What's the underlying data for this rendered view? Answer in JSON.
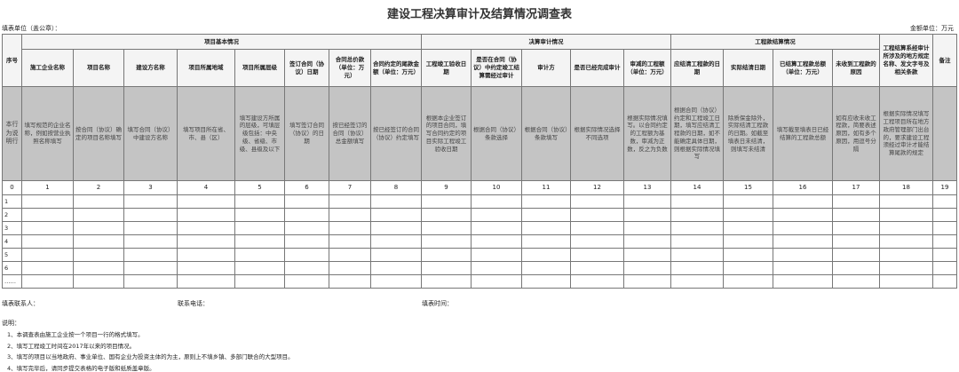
{
  "header": {
    "title": "建设工程决算审计及结算情况调查表",
    "unit_label": "填表单位（盖公章）：",
    "amount_unit": "金额单位：万元"
  },
  "table": {
    "header": {
      "seq": "序号",
      "groups": [
        "项目基本情况",
        "决算审计情况",
        "工程款结算情况"
      ],
      "columns": [
        "施工企业名称",
        "项目名称",
        "建设方名称",
        "项目所属地域",
        "项目所属层级",
        "签订合同（协议）日期",
        "合同总价款（单位：万元）",
        "合同约定的尾款金额（单位：万元）",
        "工程竣工验收日期",
        "是否在合同（协议）中约定竣工结算需经过审计",
        "审计方",
        "是否已经完成审计",
        "审减的工程额（单位：万元）",
        "应结清工程款的日期",
        "实际结清日期",
        "已结算工程款总额（单位：万元）",
        "未收到工程款的原因",
        "工程结算系经审计所涉及的地方规定名称、发文字号及相关条款",
        "备注"
      ]
    },
    "instructions": [
      "本行为说明行",
      "填写规范的企业名称，例如按营业执照名称填写",
      "按合同（协议）确定的项目名称填写",
      "填写合同（协议）中建设方名称",
      "填写项目所在省、市、县（区）",
      "填写建设方所属的层级，可填层级包括：中央级、省级、市级、县级及以下",
      "填写签订合同（协议）的日期",
      "按已经签订的合同（协议）总金额填写",
      "按已经签订的合同（协议）约定填写",
      "根据本企业签订的项目合同，填写合同约定的项目实际工程竣工验收日期",
      "根据合同（协议）条款选择",
      "根据合同（协议）条款填写",
      "根据实际情况选择不同选项",
      "根据实际情况填写。以合同约定的工程额为基数，审减为正数，反之为负数",
      "根据合同（协议）约定和工程竣工日期，填写应结清工程款的日期，如不能确定具体日期，则根据实际情况填写",
      "除质保金除外，实际结清工程款的日期。如截至填表日未结清，则填写未结清",
      "填写截至填表日已经结算的工程款总额",
      "如有应收未收工程款，简要表述原因，如有多个原因，用逗号分隔",
      "根据实际情况填写工程项目所在地方政府管理部门出台的，要求建设工程须经过审计才能结算尾款的规定"
    ],
    "index_row": [
      "0",
      "1",
      "2",
      "3",
      "4",
      "5",
      "6",
      "7",
      "8",
      "9",
      "10",
      "11",
      "12",
      "13",
      "14",
      "15",
      "16",
      "17",
      "18",
      "19"
    ],
    "row_labels": [
      "1",
      "2",
      "3",
      "4",
      "5",
      "6",
      "……"
    ]
  },
  "footer": {
    "contact": "填表联系人：",
    "phone": "联系电话：",
    "date": "填表时间："
  },
  "notes": {
    "title": "说明：",
    "items": [
      "1、本调查表由施工企业按一个项目一行的格式填写。",
      "2、填写工程竣工时间在2017年以来的项目情况。",
      "3、填写的项目以当地政府、事业单位、国有企业为投资主体的为主，原则上不填乡镇、多部门联合的大型项目。",
      "4、填写完毕后，请同步提交表格的电子版和纸质盖章版。"
    ]
  }
}
